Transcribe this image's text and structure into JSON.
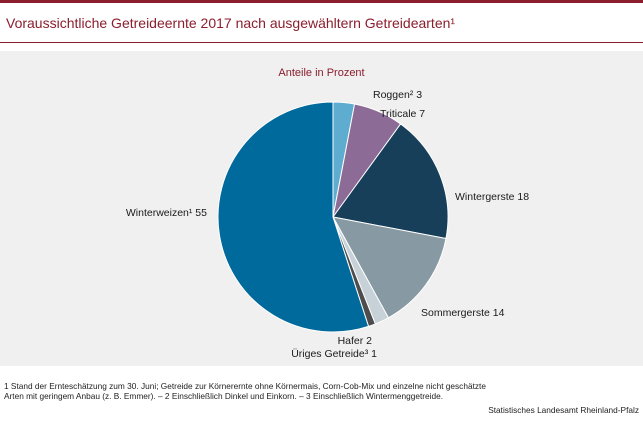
{
  "header": {
    "title": "Voraussichtliche Getreideernte 2017 nach ausgewähltern Getreidearten¹"
  },
  "chart_data": {
    "type": "pie",
    "title": "Voraussichtliche Getreideernte 2017 nach ausgewähltern Getreidearten¹",
    "subtitle": "Anteile in Prozent",
    "slices": [
      {
        "label": "Roggen² 3",
        "name": "Roggen",
        "value": 3,
        "color": "#5eacd0"
      },
      {
        "label": "Triticale 7",
        "name": "Triticale",
        "value": 7,
        "color": "#8c6b96"
      },
      {
        "label": "Wintergerste 18",
        "name": "Wintergerste",
        "value": 18,
        "color": "#173f5a"
      },
      {
        "label": "Sommergerste 14",
        "name": "Sommergerste",
        "value": 14,
        "color": "#8799a3"
      },
      {
        "label": "Hafer 2",
        "name": "Hafer",
        "value": 2,
        "color": "#c6d1d8"
      },
      {
        "label": "Üriges Getreide³ 1",
        "name": "Üriges Getreide",
        "value": 1,
        "color": "#4d4d4d"
      },
      {
        "label": "Winterweizen¹ 55",
        "name": "Winterweizen",
        "value": 55,
        "color": "#006a9c"
      }
    ]
  },
  "footnote": "1 Stand der Ernteschätzung zum 30. Juni; Getreide zur Körnerernte ohne Körnermais, Corn-Cob-Mix und einzelne nicht geschätzte Arten mit geringem Anbau (z. B. Emmer). – 2 Einschließlich Dinkel und Einkorn. – 3 Einschließlich Wintermenggetreide.",
  "source": "Statistisches Landesamt Rheinland-Pfalz"
}
